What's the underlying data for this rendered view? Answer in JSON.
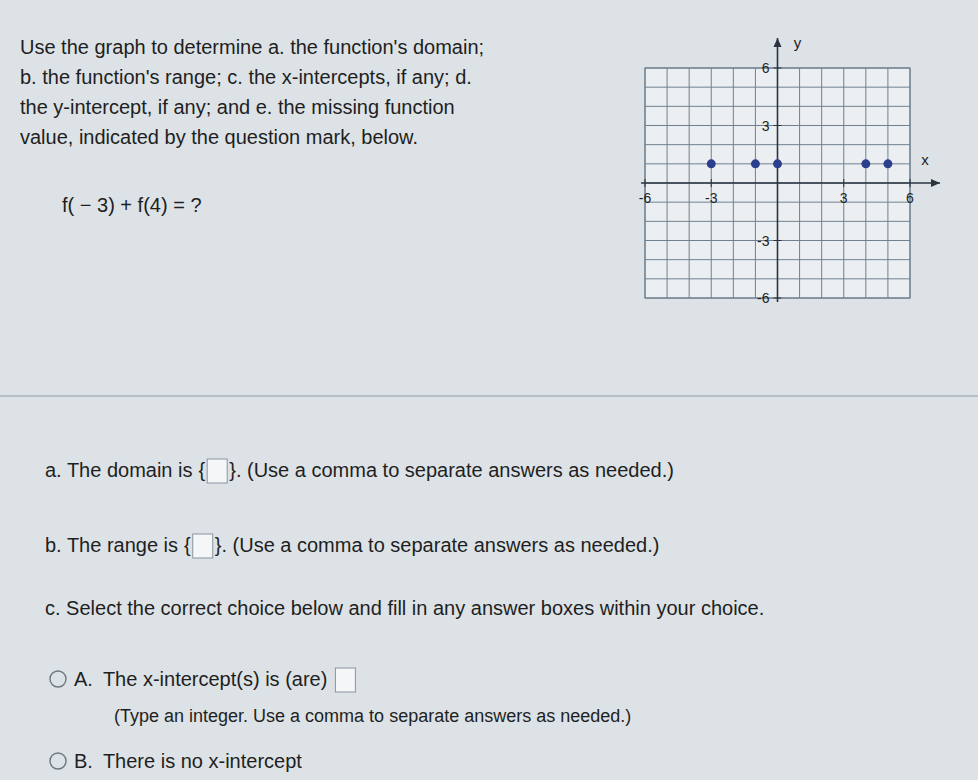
{
  "problem": {
    "lines": [
      "Use the graph to determine a. the function's domain;",
      "b. the function's range; c. the x-intercepts, if any; d.",
      "the y-intercept, if any; and e. the missing function",
      "value, indicated by the question mark, below."
    ],
    "expression": "f( − 3) + f(4) = ?"
  },
  "chart_data": {
    "type": "scatter",
    "x_label": "x",
    "y_label": "y",
    "x": [
      -3,
      -1,
      0,
      4,
      5
    ],
    "values": [
      1,
      1,
      1,
      1,
      1
    ],
    "color": "#2b3f8f",
    "marker": "circle",
    "xlim": [
      -6,
      6
    ],
    "ylim": [
      -6,
      6
    ],
    "xticks": [
      -6,
      -3,
      3,
      6
    ],
    "yticks": [
      -6,
      -3,
      3,
      6
    ],
    "grid": true
  },
  "answers": {
    "a": {
      "before": "a. The domain is",
      "open": "{",
      "close": "}",
      "after": ". (Use a comma to separate answers as needed.)"
    },
    "b": {
      "before": "b. The range is",
      "open": "{",
      "close": "}",
      "after": ". (Use a comma to separate answers as needed.)"
    },
    "c": {
      "prompt": "c. Select the correct choice below and fill in any answer boxes within your choice.",
      "choices": [
        {
          "letter": "A.",
          "text": "The x-intercept(s) is (are)",
          "hint": "(Type an integer. Use a comma to separate answers as needed.)"
        },
        {
          "letter": "B.",
          "text": "There is no x-intercept"
        }
      ]
    }
  }
}
